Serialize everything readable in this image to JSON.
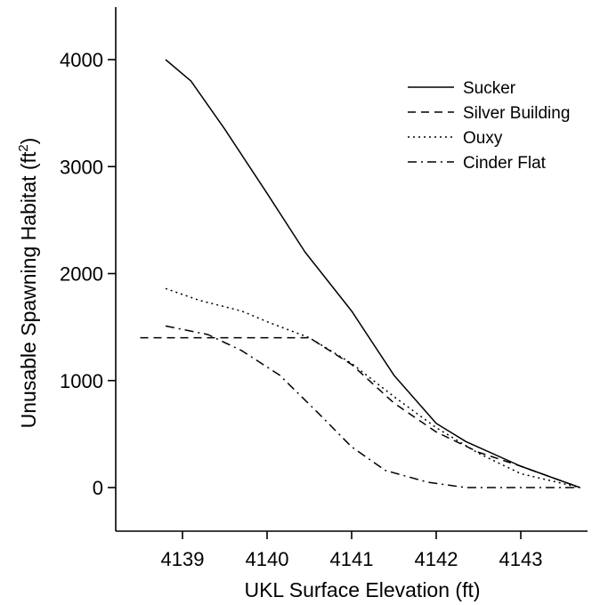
{
  "chart_data": {
    "type": "line",
    "title": "",
    "xlabel": "UKL Surface Elevation (ft)",
    "ylabel": "Unusable Spawning Habitat (ft²)",
    "ylabel_parts": {
      "main": "Unusable Spawning Habitat (ft",
      "sup": "2",
      "close": ")"
    },
    "xlim": [
      4138.3,
      4143.8
    ],
    "ylim": [
      -400,
      4500
    ],
    "xticks": [
      4139,
      4140,
      4141,
      4142,
      4143
    ],
    "yticks": [
      0,
      1000,
      2000,
      3000,
      4000
    ],
    "xtick_labels": [
      "4139",
      "4140",
      "4141",
      "4142",
      "4143"
    ],
    "ytick_labels": [
      "0",
      "1000",
      "2000",
      "3000",
      "4000"
    ],
    "grid": false,
    "legend_position": "top-right",
    "series": [
      {
        "name": "Sucker",
        "dash": "solid",
        "x": [
          4138.8,
          4139.1,
          4139.5,
          4140.0,
          4140.45,
          4141.0,
          4141.5,
          4142.0,
          4142.35,
          4143.0,
          4143.7
        ],
        "y": [
          4000,
          3800,
          3350,
          2750,
          2200,
          1650,
          1050,
          600,
          430,
          200,
          0
        ]
      },
      {
        "name": "Silver Building",
        "dash": "dashed",
        "x": [
          4138.5,
          4139.0,
          4139.5,
          4140.0,
          4140.5,
          4141.0,
          4141.5,
          4142.0,
          4142.5,
          4143.0,
          4143.7
        ],
        "y": [
          1400,
          1400,
          1400,
          1400,
          1400,
          1150,
          790,
          520,
          330,
          200,
          0
        ]
      },
      {
        "name": "Ouxy",
        "dash": "dotted",
        "x": [
          4138.8,
          4139.2,
          4139.7,
          4140.0,
          4140.5,
          4141.0,
          4141.5,
          4142.0,
          4142.5,
          4143.0,
          4143.7
        ],
        "y": [
          1860,
          1750,
          1650,
          1550,
          1400,
          1160,
          850,
          560,
          320,
          130,
          0
        ]
      },
      {
        "name": "Cinder Flat",
        "dash": "dashdot",
        "x": [
          4138.8,
          4139.3,
          4139.7,
          4140.15,
          4140.6,
          4141.0,
          4141.4,
          4141.9,
          4142.35,
          4143.0,
          4143.7
        ],
        "y": [
          1510,
          1430,
          1280,
          1050,
          700,
          380,
          160,
          50,
          0,
          0,
          0
        ]
      }
    ]
  },
  "colors": {
    "line": "#000000",
    "axis": "#000000",
    "background": "#ffffff"
  }
}
